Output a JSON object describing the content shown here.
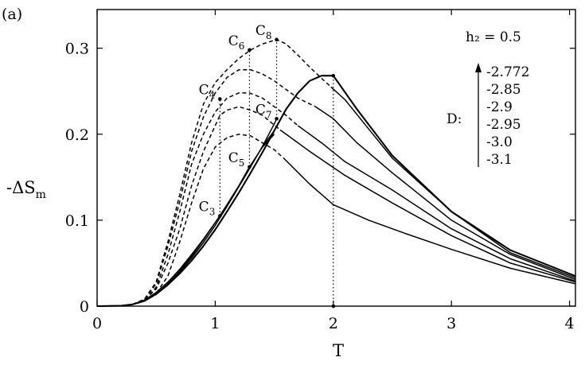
{
  "panel_label": "(a)",
  "chart_data": {
    "type": "line",
    "xlabel": "T",
    "ylabel": "-ΔS_m",
    "xlim": [
      0,
      4.05
    ],
    "ylim": [
      0,
      0.345
    ],
    "xticks": [
      {
        "value": 0,
        "label": "0"
      },
      {
        "value": 1,
        "label": "1"
      },
      {
        "value": 2,
        "label": "2"
      },
      {
        "value": 3,
        "label": "3"
      },
      {
        "value": 4,
        "label": "4"
      }
    ],
    "yticks": [
      {
        "value": 0,
        "label": "0"
      },
      {
        "value": 0.1,
        "label": "0.1"
      },
      {
        "value": 0.2,
        "label": "0.2"
      },
      {
        "value": 0.3,
        "label": "0.3"
      }
    ],
    "parameter_text": "h₂ = 0.5",
    "legend_title": "D:",
    "legend_values": [
      "-2.772",
      "-2.85",
      "-2.9",
      "-2.95",
      "-3.0",
      "-3.1"
    ],
    "series": [
      {
        "solid": [
          [
            0,
            0
          ],
          [
            0.2,
            0.0005
          ],
          [
            0.3,
            0.002
          ],
          [
            0.4,
            0.006
          ],
          [
            0.5,
            0.014
          ],
          [
            0.6,
            0.025
          ],
          [
            0.7,
            0.038
          ],
          [
            0.8,
            0.053
          ],
          [
            0.9,
            0.07
          ],
          [
            1.0,
            0.089
          ],
          [
            1.1,
            0.11
          ],
          [
            1.2,
            0.132
          ],
          [
            1.3,
            0.155
          ],
          [
            1.4,
            0.179
          ],
          [
            1.5,
            0.204
          ],
          [
            1.6,
            0.229
          ],
          [
            1.7,
            0.248
          ],
          [
            1.8,
            0.262
          ],
          [
            1.9,
            0.268
          ],
          [
            2.0,
            0.268
          ],
          [
            2.2,
            0.229
          ],
          [
            2.5,
            0.175
          ],
          [
            3.0,
            0.11
          ],
          [
            3.5,
            0.065
          ],
          [
            4.05,
            0.035
          ]
        ],
        "dashed": [],
        "points": [
          {
            "x": 2.0,
            "y": 0.268,
            "label": ""
          }
        ]
      },
      {
        "solid": [
          [
            0,
            0
          ],
          [
            0.2,
            0.0005
          ],
          [
            0.3,
            0.002
          ],
          [
            0.4,
            0.006
          ],
          [
            0.5,
            0.014
          ],
          [
            0.6,
            0.026
          ],
          [
            0.7,
            0.04
          ],
          [
            0.8,
            0.056
          ],
          [
            0.9,
            0.074
          ],
          [
            1.0,
            0.094
          ],
          [
            1.1,
            0.116
          ],
          [
            1.2,
            0.139
          ],
          [
            1.3,
            0.162
          ],
          [
            1.4,
            0.186
          ],
          [
            1.5,
            0.212
          ],
          [
            1.52,
            0.218
          ]
        ],
        "dashed": [
          [
            0.3,
            0.002
          ],
          [
            0.4,
            0.008
          ],
          [
            0.5,
            0.028
          ],
          [
            0.6,
            0.075
          ],
          [
            0.7,
            0.13
          ],
          [
            0.8,
            0.19
          ],
          [
            0.9,
            0.235
          ],
          [
            1.0,
            0.26
          ],
          [
            1.1,
            0.275
          ],
          [
            1.2,
            0.288
          ],
          [
            1.3,
            0.298
          ],
          [
            1.4,
            0.305
          ],
          [
            1.52,
            0.31
          ],
          [
            1.6,
            0.305
          ],
          [
            1.7,
            0.292
          ],
          [
            1.8,
            0.278
          ],
          [
            1.9,
            0.265
          ],
          [
            1.98,
            0.255
          ]
        ],
        "tail": [
          [
            1.98,
            0.255
          ],
          [
            2.1,
            0.24
          ],
          [
            2.3,
            0.206
          ],
          [
            2.5,
            0.172
          ],
          [
            3.0,
            0.11
          ],
          [
            3.5,
            0.062
          ],
          [
            4.05,
            0.033
          ]
        ],
        "points": [
          {
            "x": 1.52,
            "y": 0.31,
            "label": "C8"
          },
          {
            "x": 1.52,
            "y": 0.218,
            "label": "C7"
          }
        ]
      },
      {
        "solid": [
          [
            1.4,
            0.186
          ],
          [
            1.5,
            0.204
          ]
        ],
        "dashed": [
          [
            0.3,
            0.002
          ],
          [
            0.4,
            0.008
          ],
          [
            0.5,
            0.026
          ],
          [
            0.6,
            0.07
          ],
          [
            0.7,
            0.122
          ],
          [
            0.8,
            0.18
          ],
          [
            0.9,
            0.22
          ],
          [
            1.0,
            0.248
          ],
          [
            1.1,
            0.266
          ],
          [
            1.2,
            0.275
          ],
          [
            1.3,
            0.275
          ],
          [
            1.4,
            0.27
          ],
          [
            1.5,
            0.262
          ],
          [
            1.6,
            0.252
          ],
          [
            1.7,
            0.242
          ],
          [
            1.85,
            0.232
          ]
        ],
        "tail": [
          [
            1.85,
            0.232
          ],
          [
            2.0,
            0.218
          ],
          [
            2.2,
            0.19
          ],
          [
            2.5,
            0.155
          ],
          [
            3.0,
            0.1
          ],
          [
            3.5,
            0.06
          ],
          [
            4.05,
            0.031
          ]
        ],
        "points": []
      },
      {
        "solid": [
          [
            0,
            0
          ],
          [
            0.2,
            0.0005
          ],
          [
            0.3,
            0.002
          ],
          [
            0.4,
            0.006
          ],
          [
            0.5,
            0.014
          ],
          [
            0.6,
            0.026
          ],
          [
            0.7,
            0.041
          ],
          [
            0.8,
            0.058
          ],
          [
            0.9,
            0.077
          ],
          [
            1.0,
            0.097
          ],
          [
            1.1,
            0.118
          ],
          [
            1.2,
            0.14
          ],
          [
            1.29,
            0.162
          ]
        ],
        "dashed": [
          [
            0.3,
            0.002
          ],
          [
            0.4,
            0.007
          ],
          [
            0.5,
            0.022
          ],
          [
            0.6,
            0.06
          ],
          [
            0.7,
            0.11
          ],
          [
            0.8,
            0.165
          ],
          [
            0.9,
            0.2
          ],
          [
            1.0,
            0.226
          ],
          [
            1.1,
            0.242
          ],
          [
            1.2,
            0.248
          ],
          [
            1.29,
            0.248
          ],
          [
            1.4,
            0.242
          ],
          [
            1.5,
            0.232
          ],
          [
            1.6,
            0.222
          ],
          [
            1.7,
            0.21
          ]
        ],
        "tail": [
          [
            1.7,
            0.21
          ],
          [
            1.9,
            0.19
          ],
          [
            2.1,
            0.168
          ],
          [
            2.5,
            0.135
          ],
          [
            3.0,
            0.09
          ],
          [
            3.5,
            0.055
          ],
          [
            4.05,
            0.029
          ]
        ],
        "points": [
          {
            "x": 1.29,
            "y": 0.298,
            "label": "C6"
          },
          {
            "x": 1.29,
            "y": 0.162,
            "label": "C5"
          }
        ]
      },
      {
        "solid": [
          [
            1.29,
            0.162
          ],
          [
            1.4,
            0.185
          ],
          [
            1.5,
            0.2
          ]
        ],
        "dashed": [
          [
            0.3,
            0.002
          ],
          [
            0.4,
            0.007
          ],
          [
            0.5,
            0.02
          ],
          [
            0.6,
            0.05
          ],
          [
            0.7,
            0.09
          ],
          [
            0.8,
            0.14
          ],
          [
            0.9,
            0.18
          ],
          [
            1.0,
            0.21
          ],
          [
            1.04,
            0.222
          ],
          [
            1.1,
            0.228
          ],
          [
            1.2,
            0.232
          ],
          [
            1.3,
            0.228
          ],
          [
            1.4,
            0.222
          ],
          [
            1.55,
            0.205
          ]
        ],
        "tail": [
          [
            1.55,
            0.205
          ],
          [
            1.8,
            0.18
          ],
          [
            2.1,
            0.152
          ],
          [
            2.5,
            0.12
          ],
          [
            3.0,
            0.082
          ],
          [
            3.5,
            0.05
          ],
          [
            4.05,
            0.028
          ]
        ],
        "points": []
      },
      {
        "solid": [
          [
            0,
            0
          ],
          [
            0.2,
            0.0005
          ],
          [
            0.3,
            0.002
          ],
          [
            0.4,
            0.007
          ],
          [
            0.5,
            0.016
          ],
          [
            0.6,
            0.028
          ],
          [
            0.7,
            0.043
          ],
          [
            0.8,
            0.06
          ],
          [
            0.9,
            0.078
          ],
          [
            1.04,
            0.105
          ]
        ],
        "dashed": [
          [
            0.3,
            0.002
          ],
          [
            0.4,
            0.006
          ],
          [
            0.5,
            0.015
          ],
          [
            0.6,
            0.035
          ],
          [
            0.7,
            0.075
          ],
          [
            0.8,
            0.12
          ],
          [
            0.9,
            0.16
          ],
          [
            1.0,
            0.185
          ],
          [
            1.1,
            0.196
          ],
          [
            1.2,
            0.2
          ],
          [
            1.3,
            0.198
          ],
          [
            1.4,
            0.19
          ],
          [
            1.5,
            0.182
          ],
          [
            1.58,
            0.172
          ]
        ],
        "tail": [
          [
            1.58,
            0.172
          ],
          [
            1.8,
            0.142
          ],
          [
            2.0,
            0.118
          ],
          [
            2.3,
            0.1
          ],
          [
            2.6,
            0.085
          ],
          [
            3.0,
            0.066
          ],
          [
            3.5,
            0.044
          ],
          [
            4.05,
            0.026
          ]
        ],
        "points": [
          {
            "x": 1.04,
            "y": 0.241,
            "label": "C4"
          },
          {
            "x": 1.04,
            "y": 0.105,
            "label": "C3"
          }
        ]
      }
    ],
    "dotted_verticals": [
      {
        "x": 1.04,
        "y0": 0.105,
        "y1": 0.241
      },
      {
        "x": 1.29,
        "y0": 0.162,
        "y1": 0.298
      },
      {
        "x": 1.52,
        "y0": 0.218,
        "y1": 0.31
      },
      {
        "x": 2.0,
        "y0": 0,
        "y1": 0.268
      }
    ]
  }
}
